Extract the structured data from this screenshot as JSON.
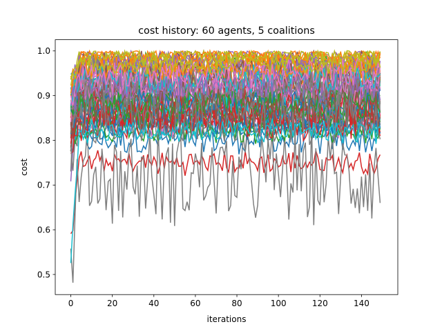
{
  "chart_data": {
    "type": "line",
    "title": "cost history: 60 agents, 5 coalitions",
    "xlabel": "iterations",
    "ylabel": "cost",
    "xlim": [
      -7.5,
      157.5
    ],
    "ylim": [
      0.455,
      1.025
    ],
    "x_ticks": [
      0,
      20,
      40,
      60,
      80,
      100,
      120,
      140
    ],
    "y_ticks": [
      0.5,
      0.6,
      0.7,
      0.8,
      0.9,
      1.0
    ],
    "x_tick_labels": [
      "0",
      "20",
      "40",
      "60",
      "80",
      "100",
      "120",
      "140"
    ],
    "y_tick_labels": [
      "0.5",
      "0.6",
      "0.7",
      "0.8",
      "0.9",
      "1.0"
    ],
    "grid": false,
    "legend": "none",
    "x_range": [
      0,
      149
    ],
    "series_colors": [
      "#1f77b4",
      "#ff7f0e",
      "#2ca02c",
      "#d62728",
      "#9467bd",
      "#8c564b",
      "#e377c2",
      "#7f7f7f",
      "#bcbd22",
      "#17becf"
    ],
    "series": [
      {
        "color": "#1f77b4",
        "start": 0.78,
        "level": 0.8,
        "spread": 0.015
      },
      {
        "color": "#ff7f0e",
        "start": 0.86,
        "level": 0.99,
        "spread": 0.008
      },
      {
        "color": "#2ca02c",
        "start": 0.83,
        "level": 0.97,
        "spread": 0.012
      },
      {
        "color": "#d62728",
        "start": 0.57,
        "level": 0.75,
        "spread": 0.012
      },
      {
        "color": "#9467bd",
        "start": 0.71,
        "level": 0.99,
        "spread": 0.006
      },
      {
        "color": "#8c564b",
        "start": 0.8,
        "level": 0.98,
        "spread": 0.01
      },
      {
        "color": "#e377c2",
        "start": 0.84,
        "level": 0.96,
        "spread": 0.012
      },
      {
        "color": "#7f7f7f",
        "start": 0.52,
        "level": 0.72,
        "spread": 0.05
      },
      {
        "color": "#bcbd22",
        "start": 0.9,
        "level": 0.985,
        "spread": 0.01
      },
      {
        "color": "#17becf",
        "start": 0.92,
        "level": 0.95,
        "spread": 0.015
      },
      {
        "color": "#1f77b4",
        "start": 0.85,
        "level": 0.83,
        "spread": 0.012
      },
      {
        "color": "#ff7f0e",
        "start": 0.88,
        "level": 0.97,
        "spread": 0.01
      },
      {
        "color": "#2ca02c",
        "start": 0.79,
        "level": 0.86,
        "spread": 0.015
      },
      {
        "color": "#d62728",
        "start": 0.82,
        "level": 0.89,
        "spread": 0.02
      },
      {
        "color": "#9467bd",
        "start": 0.86,
        "level": 0.93,
        "spread": 0.02
      },
      {
        "color": "#8c564b",
        "start": 0.78,
        "level": 0.91,
        "spread": 0.02
      },
      {
        "color": "#e377c2",
        "start": 0.8,
        "level": 0.84,
        "spread": 0.015
      },
      {
        "color": "#7f7f7f",
        "start": 0.75,
        "level": 0.87,
        "spread": 0.03
      },
      {
        "color": "#bcbd22",
        "start": 0.87,
        "level": 0.95,
        "spread": 0.015
      },
      {
        "color": "#17becf",
        "start": 0.82,
        "level": 0.83,
        "spread": 0.01
      },
      {
        "color": "#1f77b4",
        "start": 0.88,
        "level": 0.92,
        "spread": 0.018
      },
      {
        "color": "#ff7f0e",
        "start": 0.9,
        "level": 0.94,
        "spread": 0.015
      },
      {
        "color": "#2ca02c",
        "start": 0.8,
        "level": 0.82,
        "spread": 0.012
      },
      {
        "color": "#d62728",
        "start": 0.76,
        "level": 0.86,
        "spread": 0.02
      },
      {
        "color": "#9467bd",
        "start": 0.92,
        "level": 0.96,
        "spread": 0.012
      },
      {
        "color": "#8c564b",
        "start": 0.84,
        "level": 0.9,
        "spread": 0.02
      },
      {
        "color": "#e377c2",
        "start": 0.83,
        "level": 0.88,
        "spread": 0.018
      },
      {
        "color": "#7f7f7f",
        "start": 0.81,
        "level": 0.89,
        "spread": 0.03
      },
      {
        "color": "#bcbd22",
        "start": 0.93,
        "level": 0.98,
        "spread": 0.01
      },
      {
        "color": "#17becf",
        "start": 0.89,
        "level": 0.91,
        "spread": 0.018
      },
      {
        "color": "#1f77b4",
        "start": 0.86,
        "level": 0.84,
        "spread": 0.012
      },
      {
        "color": "#ff7f0e",
        "start": 0.91,
        "level": 0.975,
        "spread": 0.01
      },
      {
        "color": "#2ca02c",
        "start": 0.88,
        "level": 0.9,
        "spread": 0.015
      },
      {
        "color": "#d62728",
        "start": 0.84,
        "level": 0.88,
        "spread": 0.022
      },
      {
        "color": "#9467bd",
        "start": 0.9,
        "level": 0.95,
        "spread": 0.015
      },
      {
        "color": "#8c564b",
        "start": 0.82,
        "level": 0.92,
        "spread": 0.02
      },
      {
        "color": "#e377c2",
        "start": 0.87,
        "level": 0.91,
        "spread": 0.015
      },
      {
        "color": "#7f7f7f",
        "start": 0.85,
        "level": 0.9,
        "spread": 0.03
      },
      {
        "color": "#bcbd22",
        "start": 0.91,
        "level": 0.96,
        "spread": 0.012
      },
      {
        "color": "#17becf",
        "start": 0.86,
        "level": 0.87,
        "spread": 0.012
      },
      {
        "color": "#1f77b4",
        "start": 0.82,
        "level": 0.85,
        "spread": 0.015
      },
      {
        "color": "#ff7f0e",
        "start": 0.93,
        "level": 0.99,
        "spread": 0.008
      },
      {
        "color": "#2ca02c",
        "start": 0.84,
        "level": 0.85,
        "spread": 0.012
      },
      {
        "color": "#d62728",
        "start": 0.79,
        "level": 0.86,
        "spread": 0.018
      },
      {
        "color": "#9467bd",
        "start": 0.94,
        "level": 0.97,
        "spread": 0.012
      },
      {
        "color": "#8c564b",
        "start": 0.86,
        "level": 0.94,
        "spread": 0.018
      },
      {
        "color": "#e377c2",
        "start": 0.85,
        "level": 0.93,
        "spread": 0.018
      },
      {
        "color": "#7f7f7f",
        "start": 0.79,
        "level": 0.92,
        "spread": 0.03
      },
      {
        "color": "#bcbd22",
        "start": 0.94,
        "level": 0.99,
        "spread": 0.008
      },
      {
        "color": "#17becf",
        "start": 0.9,
        "level": 0.94,
        "spread": 0.015
      },
      {
        "color": "#1f77b4",
        "start": 0.89,
        "level": 0.88,
        "spread": 0.015
      },
      {
        "color": "#ff7f0e",
        "start": 0.92,
        "level": 0.96,
        "spread": 0.012
      },
      {
        "color": "#2ca02c",
        "start": 0.86,
        "level": 0.88,
        "spread": 0.015
      },
      {
        "color": "#d62728",
        "start": 0.81,
        "level": 0.84,
        "spread": 0.018
      },
      {
        "color": "#9467bd",
        "start": 0.88,
        "level": 0.92,
        "spread": 0.018
      },
      {
        "color": "#8c564b",
        "start": 0.83,
        "level": 0.87,
        "spread": 0.02
      },
      {
        "color": "#e377c2",
        "start": 0.88,
        "level": 0.95,
        "spread": 0.015
      },
      {
        "color": "#7f7f7f",
        "start": 0.83,
        "level": 0.85,
        "spread": 0.03
      },
      {
        "color": "#bcbd22",
        "start": 0.92,
        "level": 0.97,
        "spread": 0.01
      },
      {
        "color": "#17becf",
        "start": 0.51,
        "level": 0.82,
        "spread": 0.012
      }
    ]
  }
}
